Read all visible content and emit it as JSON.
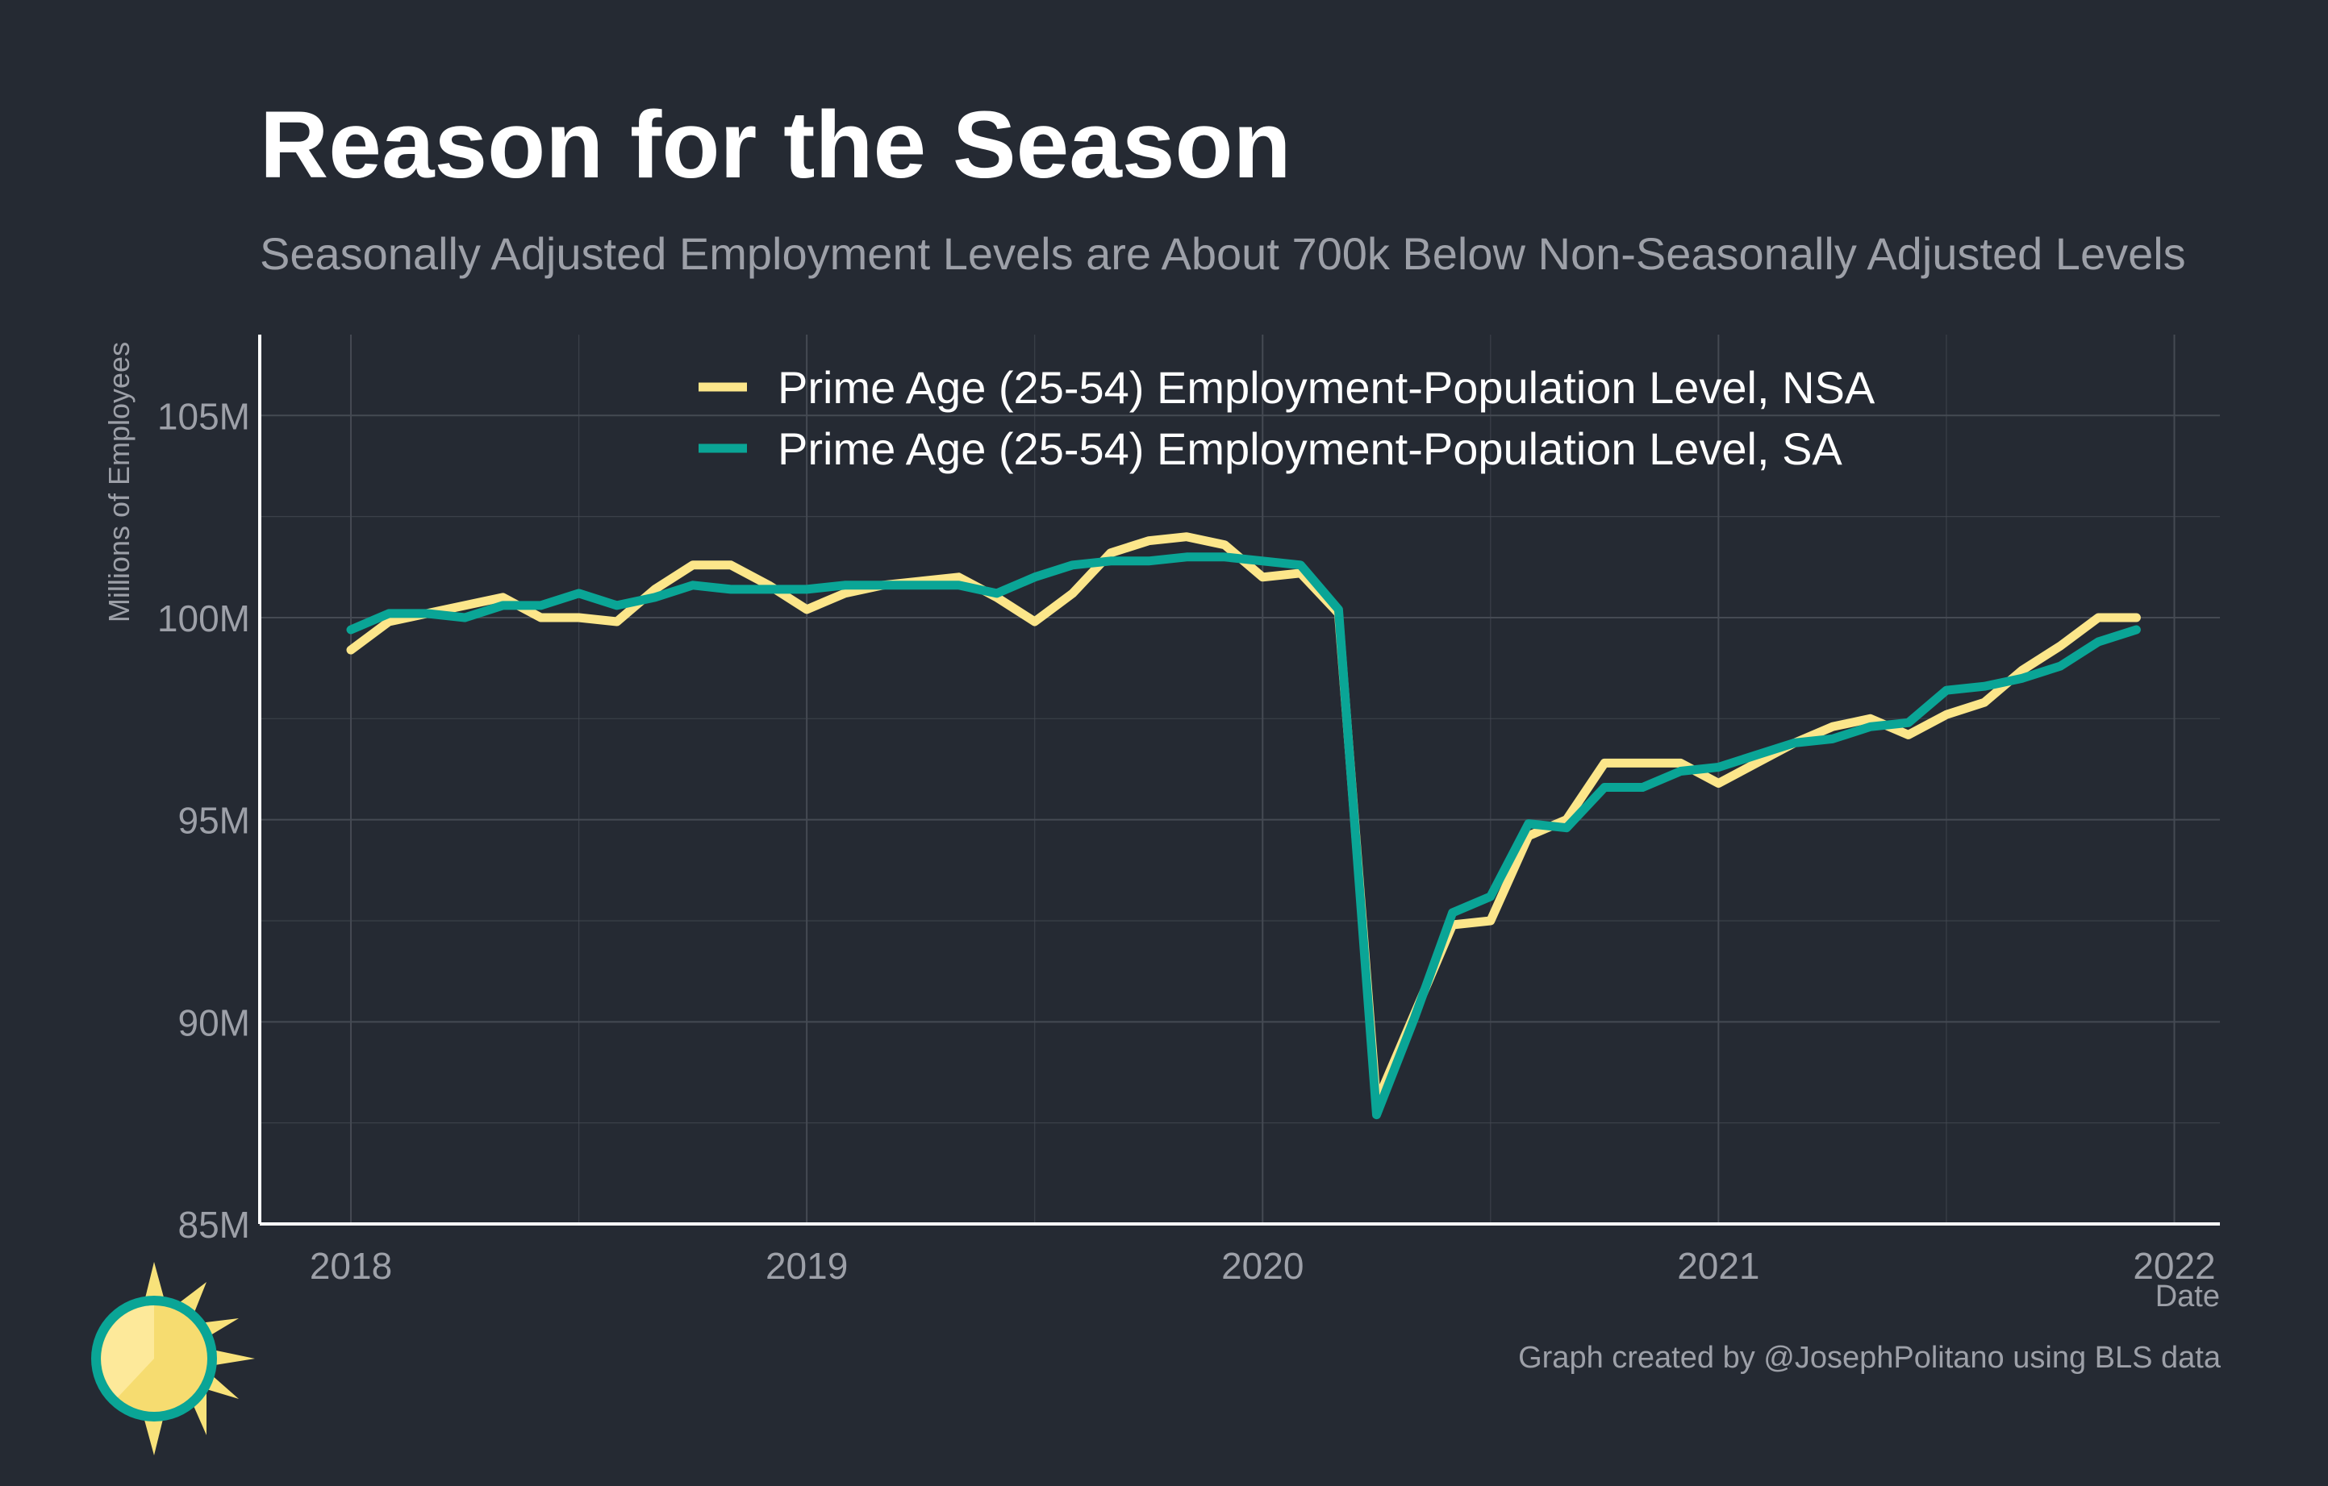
{
  "title": "Reason for the Season",
  "subtitle": "Seasonally Adjusted Employment Levels are About 700k Below Non-Seasonally Adjusted Levels",
  "credit": "Graph created by @JosephPolitano using BLS data",
  "colors": {
    "background": "#252a33",
    "nsa": "#fce68a",
    "sa": "#0aa596",
    "grid": "#454a53",
    "axis": "#ffffff",
    "text_muted": "#9da0a8"
  },
  "chart_data": {
    "type": "line",
    "xlabel": "Date",
    "ylabel": "Millions of Employees",
    "ylim": [
      85,
      107
    ],
    "xlim": [
      2017.8,
      2022.1
    ],
    "x_ticks": [
      {
        "value": 2018,
        "label": "2018"
      },
      {
        "value": 2019,
        "label": "2019"
      },
      {
        "value": 2020,
        "label": "2020"
      },
      {
        "value": 2021,
        "label": "2021"
      },
      {
        "value": 2022,
        "label": "2022"
      }
    ],
    "y_ticks": [
      {
        "value": 85,
        "label": "85M"
      },
      {
        "value": 90,
        "label": "90M"
      },
      {
        "value": 95,
        "label": "95M"
      },
      {
        "value": 100,
        "label": "100M"
      },
      {
        "value": 105,
        "label": "105M"
      }
    ],
    "grid": true,
    "legend_position": "top-center",
    "x_start": "2018-01",
    "frequency": "monthly",
    "series": [
      {
        "name": "Prime Age (25-54) Employment-Population Level, NSA",
        "color": "#fce68a",
        "values": [
          99.2,
          99.9,
          100.1,
          100.3,
          100.5,
          100.0,
          100.0,
          99.9,
          100.7,
          101.3,
          101.3,
          100.8,
          100.2,
          100.6,
          100.8,
          100.9,
          101.0,
          100.5,
          99.9,
          100.6,
          101.6,
          101.9,
          102.0,
          101.8,
          101.0,
          101.1,
          100.1,
          88.0,
          90.2,
          92.4,
          92.5,
          94.6,
          95.0,
          96.4,
          96.4,
          96.4,
          95.9,
          96.4,
          96.9,
          97.3,
          97.5,
          97.1,
          97.6,
          97.9,
          98.7,
          99.3,
          100.0,
          100.0
        ]
      },
      {
        "name": "Prime Age (25-54) Employment-Population Level, SA",
        "color": "#0aa596",
        "values": [
          99.7,
          100.1,
          100.1,
          100.0,
          100.3,
          100.3,
          100.6,
          100.3,
          100.5,
          100.8,
          100.7,
          100.7,
          100.7,
          100.8,
          100.8,
          100.8,
          100.8,
          100.6,
          101.0,
          101.3,
          101.4,
          101.4,
          101.5,
          101.5,
          101.4,
          101.3,
          100.2,
          87.7,
          90.1,
          92.7,
          93.1,
          94.9,
          94.8,
          95.8,
          95.8,
          96.2,
          96.3,
          96.6,
          96.9,
          97.0,
          97.3,
          97.4,
          98.2,
          98.3,
          98.5,
          98.8,
          99.4,
          99.7
        ]
      }
    ]
  }
}
